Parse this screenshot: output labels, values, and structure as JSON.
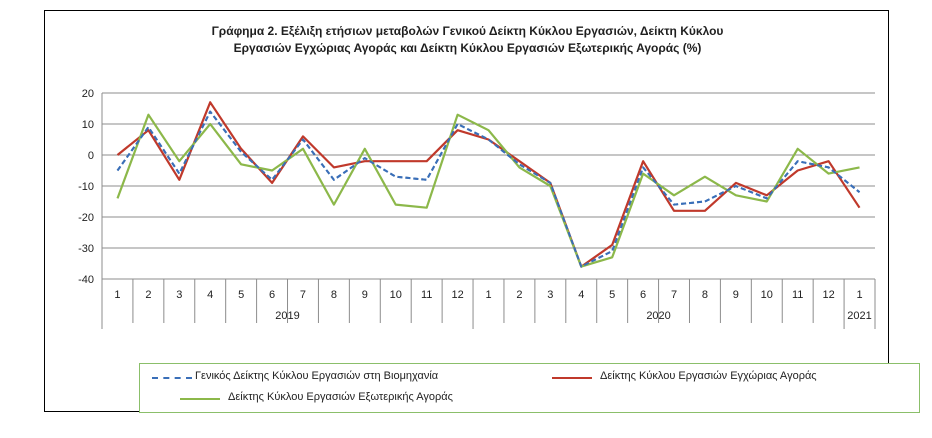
{
  "chart_data": {
    "type": "line",
    "title_line1": "Γράφημα 2. Εξέλιξη ετήσιων μεταβολών Γενικού Δείκτη Κύκλου Εργασιών,  Δείκτη Κύκλου",
    "title_line2": "Εργασιών Εγχώριας Αγοράς και Δείκτη Κύκλου Εργασιών Εξωτερικής Αγοράς  (%)",
    "x_months": [
      "1",
      "2",
      "3",
      "4",
      "5",
      "6",
      "7",
      "8",
      "9",
      "10",
      "11",
      "12",
      "1",
      "2",
      "3",
      "4",
      "5",
      "6",
      "7",
      "8",
      "9",
      "10",
      "11",
      "12",
      "1"
    ],
    "year_labels": [
      {
        "label": "2019",
        "start": 0,
        "end": 11
      },
      {
        "label": "2020",
        "start": 12,
        "end": 23
      },
      {
        "label": "2021",
        "start": 24,
        "end": 24
      }
    ],
    "ylim": [
      -40,
      20
    ],
    "yticks": [
      20,
      10,
      0,
      -10,
      -20,
      -30,
      -40
    ],
    "grid": true,
    "series": [
      {
        "name": "Γενικός Δείκτης Κύκλου Εργασιών στη Βιομηχανία",
        "color": "#3a6fb8",
        "style": "dashed",
        "values": [
          -5,
          9,
          -6,
          14,
          1,
          -8,
          5,
          -8,
          -1,
          -7,
          -8,
          10,
          5,
          -3,
          -9,
          -36,
          -31,
          -4,
          -16,
          -15,
          -10,
          -14,
          -2,
          -4,
          -12
        ]
      },
      {
        "name": "Δείκτης Κύκλου Εργασιών Εγχώριας Αγοράς",
        "color": "#c0392b",
        "style": "solid",
        "values": [
          0,
          8,
          -8,
          17,
          2,
          -9,
          6,
          -4,
          -2,
          -2,
          -2,
          8,
          5,
          -2,
          -9,
          -36,
          -29,
          -2,
          -18,
          -18,
          -9,
          -13,
          -5,
          -2,
          -17
        ]
      },
      {
        "name": "Δείκτης Κύκλου Εργασιών Εξωτερικής Αγοράς",
        "color": "#8cb84a",
        "style": "solid",
        "values": [
          -14,
          13,
          -2,
          10,
          -3,
          -5,
          2,
          -16,
          2,
          -16,
          -17,
          13,
          8,
          -4,
          -10,
          -36,
          -33,
          -6,
          -13,
          -7,
          -13,
          -15,
          2,
          -6,
          -4
        ]
      }
    ]
  }
}
